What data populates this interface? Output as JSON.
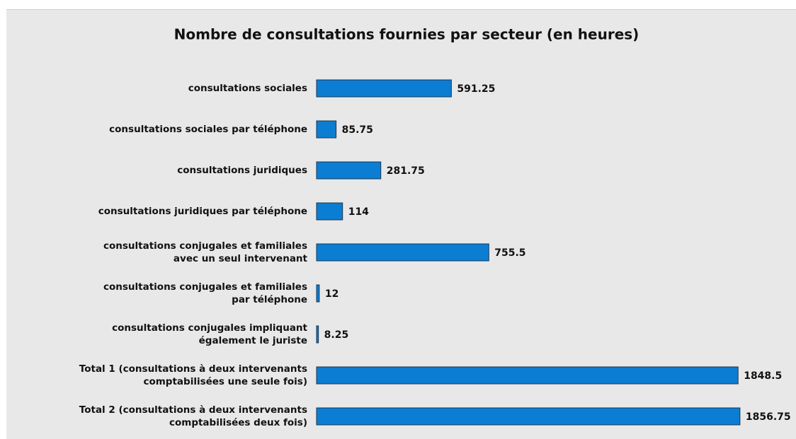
{
  "chart_data": {
    "type": "barh",
    "title": "Nombre de consultations fournies par secteur (en heures)",
    "categories": [
      "consultations sociales",
      "consultations sociales par téléphone",
      "consultations juridiques",
      "consultations juridiques par téléphone",
      "consultations conjugales et familiales\navec un seul intervenant",
      "consultations conjugales et familiales\npar téléphone",
      "consultations conjugales impliquant\négalement le juriste",
      "Total 1 (consultations à deux intervenants\ncomptabilisées une seule fois)",
      "Total 2 (consultations à deux intervenants\ncomptabilisées deux fois)"
    ],
    "values": [
      591.25,
      85.75,
      281.75,
      114,
      755.5,
      12,
      8.25,
      1848.5,
      1856.75
    ],
    "color": "#0b7dd3",
    "xlim": [
      0,
      2000
    ]
  }
}
